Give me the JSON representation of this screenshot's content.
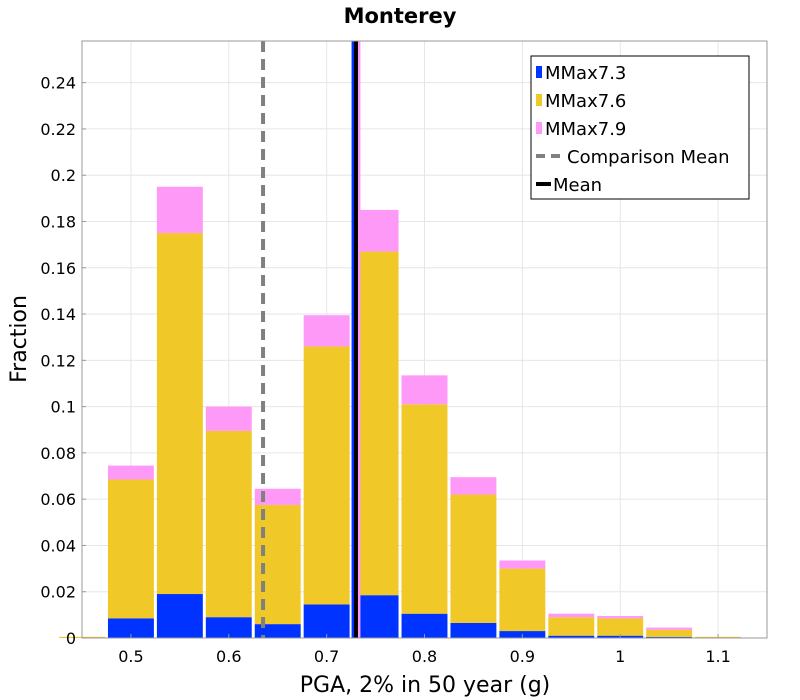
{
  "chart_data": {
    "type": "bar",
    "stacked": true,
    "title": "Monterey",
    "xlabel": "PGA, 2% in 50 year (g)",
    "ylabel": "Fraction",
    "xlim": [
      0.45,
      1.15
    ],
    "ylim": [
      0,
      0.258
    ],
    "bin_width": 0.05,
    "x_ticks": [
      {
        "value": 0.5,
        "label": "0.5"
      },
      {
        "value": 0.6,
        "label": "0.6"
      },
      {
        "value": 0.7,
        "label": "0.7"
      },
      {
        "value": 0.8,
        "label": "0.8"
      },
      {
        "value": 0.9,
        "label": "0.9"
      },
      {
        "value": 1.0,
        "label": "1"
      },
      {
        "value": 1.1,
        "label": "1.1"
      }
    ],
    "y_ticks": [
      {
        "value": 0,
        "label": "0"
      },
      {
        "value": 0.02,
        "label": "0.02"
      },
      {
        "value": 0.04,
        "label": "0.04"
      },
      {
        "value": 0.06,
        "label": "0.06"
      },
      {
        "value": 0.08,
        "label": "0.08"
      },
      {
        "value": 0.1,
        "label": "0.1"
      },
      {
        "value": 0.12,
        "label": "0.12"
      },
      {
        "value": 0.14,
        "label": "0.14"
      },
      {
        "value": 0.16,
        "label": "0.16"
      },
      {
        "value": 0.18,
        "label": "0.18"
      },
      {
        "value": 0.2,
        "label": "0.2"
      },
      {
        "value": 0.22,
        "label": "0.22"
      },
      {
        "value": 0.24,
        "label": "0.24"
      }
    ],
    "grid": true,
    "legend_position": "top-right",
    "x": [
      0.45,
      0.5,
      0.55,
      0.6,
      0.65,
      0.7,
      0.75,
      0.8,
      0.85,
      0.9,
      0.95,
      1.0,
      1.05,
      1.1
    ],
    "series": [
      {
        "name": "MMax7.3",
        "color": "#0033ff",
        "values": [
          0,
          0.0085,
          0.019,
          0.009,
          0.006,
          0.0145,
          0.0185,
          0.0105,
          0.0065,
          0.003,
          0.001,
          0.001,
          0.0005,
          0
        ]
      },
      {
        "name": "MMax7.6",
        "color": "#f0c828",
        "values": [
          0.0005,
          0.06,
          0.156,
          0.0805,
          0.0515,
          0.1115,
          0.1485,
          0.0905,
          0.0555,
          0.027,
          0.008,
          0.0075,
          0.003,
          0.0005
        ]
      },
      {
        "name": "MMax7.9",
        "color": "#ff99f8",
        "values": [
          0,
          0.006,
          0.02,
          0.0105,
          0.007,
          0.0135,
          0.018,
          0.0125,
          0.0075,
          0.0035,
          0.0015,
          0.001,
          0.001,
          0
        ]
      }
    ],
    "reference_lines": [
      {
        "name": "Comparison Mean",
        "x": 0.635,
        "color": "#808080",
        "style": "dashed"
      },
      {
        "name": "Mean",
        "x": 0.73,
        "color": "#000000",
        "style": "solid"
      }
    ],
    "extra_vertical_lines": [
      {
        "x": 0.727,
        "color": "#0033ff"
      },
      {
        "x": 0.733,
        "color": "#ff99f8"
      }
    ]
  }
}
